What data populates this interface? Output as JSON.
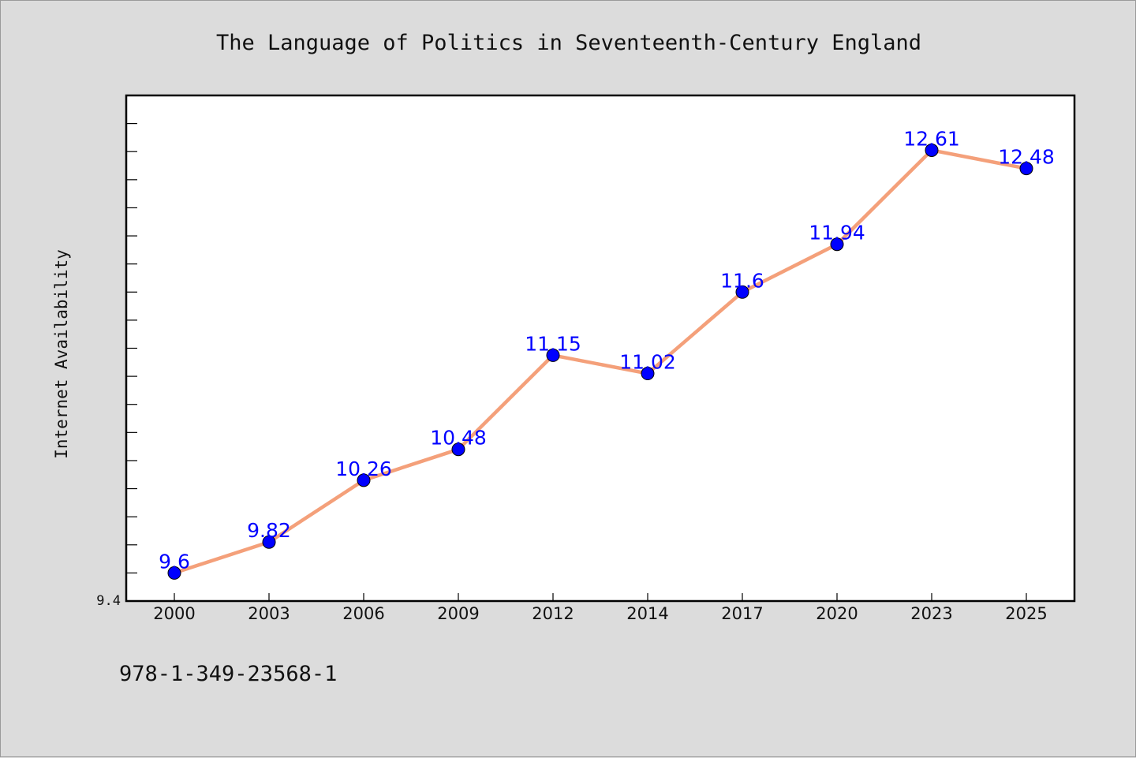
{
  "chart_data": {
    "type": "line",
    "title": "The Language of Politics in Seventeenth-Century England",
    "xlabel": "",
    "ylabel": "Internet Availability",
    "categories": [
      "2000",
      "2003",
      "2006",
      "2009",
      "2012",
      "2014",
      "2017",
      "2020",
      "2023",
      "2025"
    ],
    "series": [
      {
        "values": [
          9.6,
          9.82,
          10.26,
          10.48,
          11.15,
          11.02,
          11.6,
          11.94,
          12.61,
          12.48
        ],
        "line_color": "#f4a07a",
        "marker_color": "#0000ff"
      }
    ],
    "ylim": [
      9.4,
      13.0
    ],
    "y_tick_labels": [
      "9.4"
    ],
    "y_minor_ticks": true,
    "grid": false,
    "legend": "none",
    "data_labels": true,
    "data_label_color": "#0000ff"
  },
  "footer": {
    "isbn": "978-1-349-23568-1"
  }
}
